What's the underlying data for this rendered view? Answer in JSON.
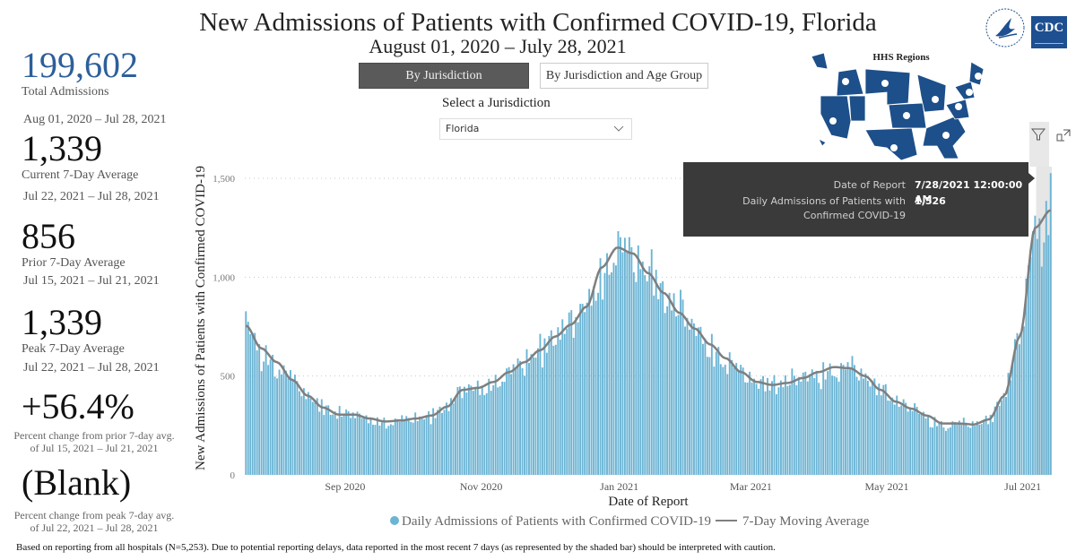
{
  "header": {
    "title": "New Admissions of Patients with Confirmed COVID-19, Florida",
    "subtitle": "August 01, 2020 – July 28, 2021"
  },
  "kpis": {
    "total": {
      "value": "199,602",
      "label": "Total Admissions",
      "range": "Aug 01, 2020 – Jul 28, 2021"
    },
    "current": {
      "value": "1,339",
      "label": "Current 7-Day Average",
      "range": "Jul 22, 2021 – Jul 28, 2021"
    },
    "prior": {
      "value": "856",
      "label": "Prior 7-Day Average",
      "range": "Jul 15, 2021 – Jul 21, 2021"
    },
    "peak": {
      "value": "1,339",
      "label": "Peak 7-Day Average",
      "range": "Jul 22, 2021 – Jul 28, 2021"
    },
    "pct_prior": {
      "value": "+56.4%",
      "note": "Percent change from prior 7-day avg. of Jul 15, 2021 – Jul 21, 2021"
    },
    "pct_peak": {
      "value": "(Blank)",
      "note": "Percent change from peak 7-day avg. of Jul 22, 2021 – Jul 28, 2021"
    }
  },
  "tabs": [
    {
      "label": "By Jurisdiction",
      "active": true
    },
    {
      "label": "By Jurisdiction and Age Group",
      "active": false
    }
  ],
  "jurisdiction": {
    "label": "Select a Jurisdiction",
    "selected": "Florida"
  },
  "logos": {
    "cdc": "CDC",
    "hhs": "HHS"
  },
  "map": {
    "title": "HHS Regions",
    "regions": [
      "1",
      "2",
      "3",
      "4",
      "5",
      "6",
      "7",
      "8",
      "9",
      "10"
    ]
  },
  "icons": {
    "filter": "filter-icon",
    "focus": "focus-mode-icon"
  },
  "tooltip": {
    "rows": [
      {
        "key": "Date of Report",
        "value": "7/28/2021 12:00:00 AM"
      },
      {
        "key": "Daily Admissions of Patients with Confirmed COVID-19",
        "value": "1,526"
      }
    ]
  },
  "footer": "Based on reporting from all hospitals (N=5,253). Due to potential reporting delays, data reported in the most recent 7 days (as represented by the shaded bar) should be interpreted with caution.",
  "colors": {
    "bar": "#6bb4d4",
    "line": "#7f7f7f",
    "shade": "#e6e6e6",
    "accent": "#2d5f9a"
  },
  "chart_data": {
    "type": "bar",
    "title": "",
    "xlabel": "Date of Report",
    "ylabel": "New Admissions of Patients with Confirmed COVID-19",
    "ylim": [
      0,
      1600
    ],
    "yticks": [
      0,
      500,
      1000,
      1500
    ],
    "ytick_labels": [
      "0",
      "500",
      "1,000",
      "1,500"
    ],
    "x_start": "2020-08-01",
    "x_end": "2021-07-28",
    "xticks": [
      {
        "label": "Sep 2020",
        "day": 45
      },
      {
        "label": "Nov 2020",
        "day": 106
      },
      {
        "label": "Jan 2021",
        "day": 168
      },
      {
        "label": "Mar 2021",
        "day": 227
      },
      {
        "label": "May 2021",
        "day": 288
      },
      {
        "label": "Jul 2021",
        "day": 349
      }
    ],
    "grid": true,
    "shaded_recent_days": 7,
    "legend": {
      "position": "bottom",
      "entries": [
        {
          "name": "Daily Admissions of Patients with Confirmed COVID-19",
          "marker": "dot"
        },
        {
          "name": "7-Day Moving Average",
          "marker": "line"
        }
      ]
    },
    "weekly_anchor_values": [
      755,
      640,
      570,
      480,
      400,
      340,
      305,
      305,
      285,
      270,
      275,
      285,
      300,
      345,
      430,
      440,
      470,
      520,
      570,
      630,
      700,
      760,
      850,
      1050,
      1150,
      1120,
      1020,
      920,
      820,
      740,
      660,
      590,
      520,
      470,
      455,
      465,
      490,
      520,
      545,
      540,
      500,
      430,
      370,
      335,
      300,
      260,
      260,
      255,
      280,
      400,
      700,
      1250,
      1339
    ],
    "daily_noise_pct": [
      0,
      -12,
      -15,
      8,
      -5,
      6,
      -3,
      10,
      -8,
      -14,
      5,
      -2,
      9,
      -6,
      4,
      -11,
      7,
      -4,
      12,
      -9,
      3,
      -7,
      6,
      -13,
      2,
      8,
      -5,
      11,
      -10,
      4,
      -3,
      7,
      -8,
      5,
      -12,
      9,
      -2,
      6,
      -7,
      3,
      -6,
      10,
      -4,
      8,
      -11,
      2,
      -5,
      12,
      -9,
      4
    ],
    "series": [
      {
        "name": "Daily Admissions of Patients with Confirmed COVID-19",
        "type": "bar",
        "last_value": 1526
      },
      {
        "name": "7-Day Moving Average",
        "type": "line",
        "last_value": 1339
      }
    ]
  }
}
